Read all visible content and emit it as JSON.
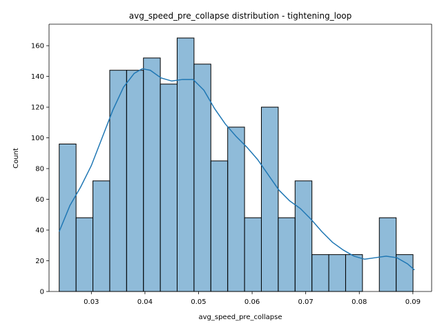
{
  "chart_data": {
    "type": "bar",
    "subtype": "histogram-with-kde",
    "title": "avg_speed_pre_collapse distribution - tightening_loop",
    "xlabel": "avg_speed_pre_collapse",
    "ylabel": "Count",
    "xlim": [
      0.0221,
      0.0935
    ],
    "ylim": [
      0,
      174
    ],
    "x_ticks": [
      0.03,
      0.04,
      0.05,
      0.06,
      0.07,
      0.08,
      0.09
    ],
    "x_tick_labels": [
      "0.03",
      "0.04",
      "0.05",
      "0.06",
      "0.07",
      "0.08",
      "0.09"
    ],
    "y_ticks": [
      0,
      20,
      40,
      60,
      80,
      100,
      120,
      140,
      160
    ],
    "y_tick_labels": [
      "0",
      "20",
      "40",
      "60",
      "80",
      "100",
      "120",
      "140",
      "160"
    ],
    "bin_start": 0.024,
    "bin_width": 0.003144,
    "counts": [
      96,
      48,
      72,
      144,
      144,
      152,
      135,
      165,
      148,
      85,
      107,
      48,
      120,
      48,
      72,
      24,
      24,
      24,
      0,
      48,
      24
    ],
    "kde": {
      "x": [
        0.024,
        0.026,
        0.028,
        0.03,
        0.032,
        0.034,
        0.036,
        0.038,
        0.0395,
        0.041,
        0.043,
        0.045,
        0.047,
        0.049,
        0.051,
        0.053,
        0.055,
        0.057,
        0.059,
        0.061,
        0.063,
        0.065,
        0.067,
        0.069,
        0.071,
        0.073,
        0.075,
        0.077,
        0.079,
        0.081,
        0.083,
        0.085,
        0.087,
        0.089,
        0.0903
      ],
      "y": [
        39,
        56,
        68,
        82,
        100,
        118,
        133,
        142,
        145,
        144,
        139,
        137,
        138,
        138,
        131,
        119,
        109,
        101,
        94,
        86,
        76,
        66,
        59,
        54,
        47,
        39,
        32,
        27,
        23,
        21,
        22,
        23,
        22,
        18,
        14
      ]
    },
    "colors": {
      "bar_fill": "#1f77b4",
      "bar_edge": "#000000",
      "kde_line": "#1f77b4"
    },
    "grid": false,
    "legend": "none"
  }
}
